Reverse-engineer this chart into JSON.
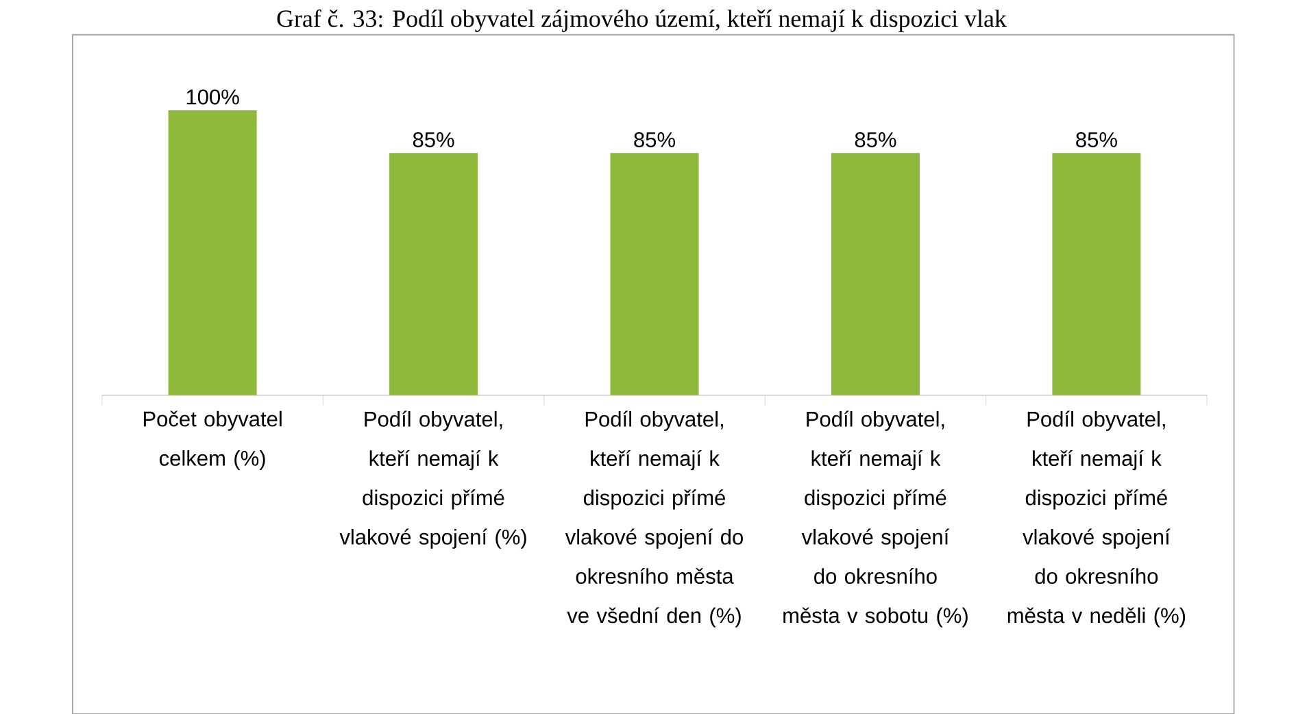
{
  "chart_data": {
    "type": "bar",
    "title": "Graf č. 33: Podíl obyvatel zájmového území, kteří nemají k dispozici vlak",
    "categories": [
      "Počet obyvatel celkem (%)",
      "Podíl obyvatel, kteří nemají k dispozici přímé vlakové spojení (%)",
      "Podíl obyvatel, kteří nemají k dispozici přímé vlakové spojení do okresního města ve všední den (%)",
      "Podíl obyvatel, kteří nemají k dispozici přímé vlakové spojení do okresního města v sobotu (%)",
      "Podíl obyvatel, kteří nemají k dispozici přímé vlakové spojení do okresního města v neděli (%)"
    ],
    "values": [
      100,
      85,
      85,
      85,
      85
    ],
    "value_labels": [
      "100%",
      "85%",
      "85%",
      "85%",
      "85%"
    ],
    "color": "#8db83a"
  }
}
